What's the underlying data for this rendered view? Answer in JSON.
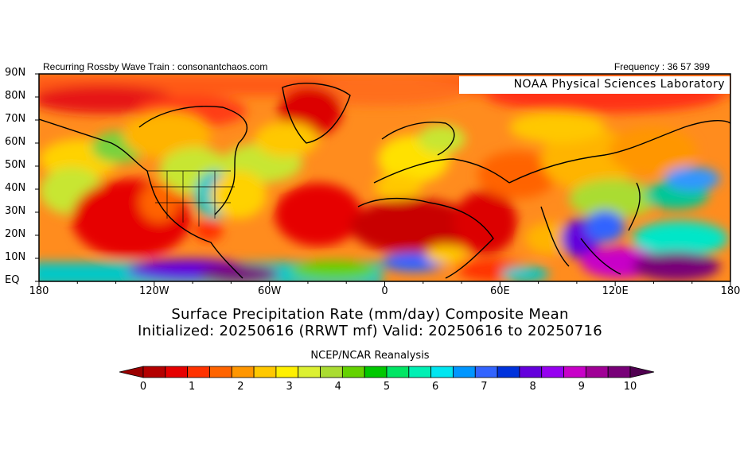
{
  "header": {
    "left_text": "Recurring Rossby Wave Train : consonantchaos.com",
    "right_text": "Frequency : 36 57 399"
  },
  "map": {
    "provider_label": "NOAA Physical Sciences Laboratory",
    "lat_labels": [
      "90N",
      "80N",
      "70N",
      "60N",
      "50N",
      "40N",
      "30N",
      "20N",
      "10N",
      "EQ"
    ],
    "lon_labels": [
      "180",
      "120W",
      "60W",
      "0",
      "60E",
      "120E",
      "180"
    ]
  },
  "title": {
    "line1": "Surface Precipitation Rate (mm/day) Composite Mean",
    "line2": "Initialized: 20250616 (RRWT mf) Valid: 20250616 to 20250716"
  },
  "source_label": "NCEP/NCAR Reanalysis",
  "colorbar": {
    "min": 0,
    "max": 10,
    "tick_labels": [
      "0",
      "1",
      "2",
      "3",
      "4",
      "5",
      "6",
      "7",
      "8",
      "9",
      "10"
    ],
    "colors": [
      "#b40000",
      "#e60000",
      "#ff3200",
      "#ff6400",
      "#ff9600",
      "#ffc800",
      "#fff000",
      "#dcf032",
      "#aadc32",
      "#64d200",
      "#00c800",
      "#00e664",
      "#00f0b4",
      "#00e6f0",
      "#0096ff",
      "#3264ff",
      "#0032dc",
      "#6400dc",
      "#9600f0",
      "#c800c8",
      "#a00096",
      "#780078"
    ],
    "low_end_color": "#9b0000",
    "high_end_color": "#500050"
  }
}
